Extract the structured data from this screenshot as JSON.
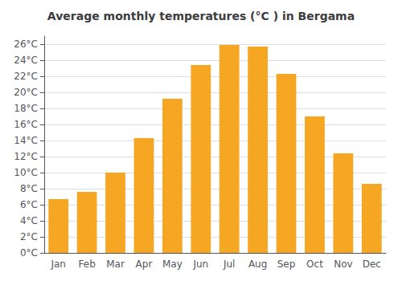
{
  "chart_data": {
    "type": "bar",
    "title": "Average monthly temperatures (°C ) in Bergama",
    "categories": [
      "Jan",
      "Feb",
      "Mar",
      "Apr",
      "May",
      "Jun",
      "Jul",
      "Aug",
      "Sep",
      "Oct",
      "Nov",
      "Dec"
    ],
    "values": [
      6.7,
      7.6,
      10.0,
      14.3,
      19.2,
      23.4,
      25.9,
      25.7,
      22.3,
      17.0,
      12.4,
      8.6
    ],
    "color": "#F5A623",
    "ylim": [
      0,
      27
    ],
    "yticks": [
      {
        "value": 0,
        "label": "0°C"
      },
      {
        "value": 2,
        "label": "2°C"
      },
      {
        "value": 4,
        "label": "4°C"
      },
      {
        "value": 6,
        "label": "6°C"
      },
      {
        "value": 8,
        "label": "8°C"
      },
      {
        "value": 10,
        "label": "10°C"
      },
      {
        "value": 12,
        "label": "12°C"
      },
      {
        "value": 14,
        "label": "14°C"
      },
      {
        "value": 16,
        "label": "16°C"
      },
      {
        "value": 18,
        "label": "18°C"
      },
      {
        "value": 20,
        "label": "20°C"
      },
      {
        "value": 22,
        "label": "22°C"
      },
      {
        "value": 24,
        "label": "24°C"
      },
      {
        "value": 26,
        "label": "26°C"
      }
    ],
    "grid": true
  }
}
